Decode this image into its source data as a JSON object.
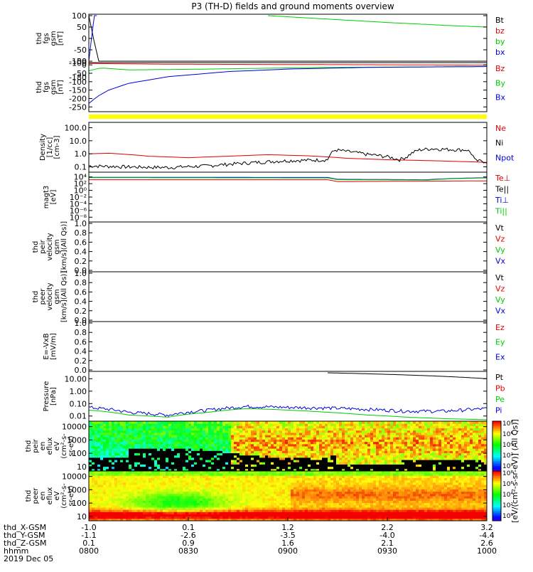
{
  "title": "P3 (TH-D) fields and ground moments overview",
  "colors": {
    "red": "#e00000",
    "green": "#00cc00",
    "blue": "#0000dd",
    "black": "#000000",
    "yellow": "#ffff00"
  },
  "chart_data": [
    {
      "type": "line",
      "panel": "fgs",
      "ylabel": [
        "thd",
        "fgs",
        "gsm",
        "[nT]"
      ],
      "ylim": [
        -100,
        100
      ],
      "yticks": [
        "100",
        "50",
        "0",
        "-50",
        "-100"
      ],
      "legend": [
        {
          "label": "Bt",
          "color": "black"
        },
        {
          "label": "bz",
          "color": "red"
        },
        {
          "label": "by",
          "color": "green"
        },
        {
          "label": "bx",
          "color": "blue"
        }
      ],
      "series": [
        {
          "name": "Bt",
          "color": "black",
          "x": [
            0.0,
            0.01,
            0.016,
            0.03,
            1.0
          ],
          "y": [
            100,
            60,
            -100,
            -100,
            -100
          ]
        },
        {
          "name": "bx",
          "color": "blue",
          "x": [
            0.0,
            0.008,
            0.014,
            0.02
          ],
          "y": [
            -100,
            20,
            100,
            100
          ]
        },
        {
          "name": "by",
          "color": "green",
          "x": [
            0.45,
            0.6,
            0.75,
            0.9,
            1.0
          ],
          "y": [
            100,
            85,
            70,
            57,
            50
          ]
        }
      ]
    },
    {
      "type": "line",
      "panel": "fgs_ds",
      "ylabel": [
        "thd",
        "fgs",
        "gsm",
        "[nT]"
      ],
      "ylim": [
        -270,
        5
      ],
      "yticks": [
        "0",
        "-50",
        "-100",
        "-150",
        "-200",
        "-250"
      ],
      "extra_yticks": [
        {
          "label": "-100",
          "value": 12
        },
        {
          "label": "-50",
          "value": 22
        },
        {
          "label": "-180",
          "value": -74
        }
      ],
      "legend": [
        {
          "label": "Bz",
          "color": "red"
        },
        {
          "label": "By",
          "color": "green"
        },
        {
          "label": "Bx",
          "color": "blue"
        }
      ],
      "series": [
        {
          "name": "Bz",
          "color": "red",
          "x": [
            0.0,
            0.2,
            0.5,
            0.8,
            1.0
          ],
          "y": [
            8,
            4,
            2,
            0,
            -2
          ]
        },
        {
          "name": "By",
          "color": "green",
          "x": [
            0.0,
            0.03,
            0.1,
            0.3,
            0.6,
            1.0
          ],
          "y": [
            -35,
            -18,
            -30,
            -25,
            -15,
            -10
          ]
        },
        {
          "name": "Bx",
          "color": "blue",
          "x": [
            0.0,
            0.02,
            0.05,
            0.1,
            0.2,
            0.35,
            0.5,
            0.7,
            1.0
          ],
          "y": [
            -230,
            -190,
            -150,
            -110,
            -70,
            -40,
            -25,
            -15,
            -10
          ]
        }
      ]
    },
    {
      "type": "bar",
      "panel": "flag",
      "color": "yellow"
    },
    {
      "type": "line",
      "panel": "density",
      "ylabel": [
        "Density",
        "[1/cc]",
        "[cm-3]"
      ],
      "scale": "log",
      "ylim": [
        0.05,
        200
      ],
      "yticks": [
        {
          "label": "100.0",
          "value": 100
        },
        {
          "label": "10.0",
          "value": 10
        },
        {
          "label": "1.0",
          "value": 1
        },
        {
          "label": "0.1",
          "value": 0.1
        }
      ],
      "legend": [
        {
          "label": "Ne",
          "color": "red"
        },
        {
          "label": "Ni",
          "color": "black"
        },
        {
          "label": "Npot",
          "color": "blue"
        }
      ],
      "series": [
        {
          "name": "Ne",
          "color": "red",
          "x": [
            0.0,
            0.05,
            0.15,
            0.25,
            0.35,
            0.45,
            0.55,
            0.65,
            0.75,
            0.85,
            1.0
          ],
          "y": [
            1.0,
            1.1,
            0.65,
            0.5,
            0.65,
            0.85,
            0.7,
            0.45,
            0.35,
            0.3,
            0.22
          ]
        },
        {
          "name": "Ni",
          "color": "black",
          "x": [
            0.0,
            0.1,
            0.2,
            0.3,
            0.4,
            0.5,
            0.6,
            0.62,
            0.65,
            0.7,
            0.75,
            0.78,
            0.8,
            0.83,
            0.86,
            0.9,
            0.95,
            0.97,
            1.0
          ],
          "y": [
            0.12,
            0.1,
            0.09,
            0.12,
            0.2,
            0.3,
            0.35,
            2.0,
            1.5,
            0.9,
            0.6,
            0.35,
            0.6,
            2.0,
            2.5,
            2.2,
            2.0,
            0.3,
            0.25
          ]
        }
      ]
    },
    {
      "type": "line",
      "panel": "moments_temp",
      "ylabel": [
        "magt3",
        "[eV]"
      ],
      "scale": "log",
      "ylim": [
        1e-09,
        100000.0
      ],
      "yticks": [
        {
          "label": "10⁴",
          "value": 10000.0
        },
        {
          "label": "10²",
          "value": 100.0
        },
        {
          "label": "10⁰",
          "value": 1
        },
        {
          "label": "10⁻²",
          "value": 0.01
        },
        {
          "label": "10⁻⁴",
          "value": 0.0001
        },
        {
          "label": "10⁻⁶",
          "value": 1e-06
        },
        {
          "label": "10⁻⁸",
          "value": 1e-08
        }
      ],
      "legend": [
        {
          "label": "Te⊥",
          "color": "red"
        },
        {
          "label": "Te||",
          "color": "black"
        },
        {
          "label": "Ti⊥",
          "color": "blue"
        },
        {
          "label": "Ti||",
          "color": "green"
        }
      ],
      "series": [
        {
          "name": "Te⊥",
          "color": "red",
          "x": [
            0.0,
            0.6,
            0.62,
            0.9,
            1.0
          ],
          "y": [
            1500,
            1500,
            400,
            600,
            700
          ]
        },
        {
          "name": "Ti⊥",
          "color": "blue",
          "x": [
            0.0,
            0.6,
            0.62,
            0.85,
            1.0
          ],
          "y": [
            8000,
            7000,
            2000,
            1500,
            6000
          ]
        },
        {
          "name": "Ti||",
          "color": "green",
          "x": [
            0.0,
            0.6,
            0.62,
            0.85,
            1.0
          ],
          "y": [
            6000,
            5000,
            1500,
            1200,
            5000
          ]
        }
      ]
    },
    {
      "type": "line",
      "panel": "peir_velocity",
      "ylabel": [
        "thd",
        "peir",
        "velocity",
        "gsm",
        "[km/s](All Qs)]"
      ],
      "ylim": [
        0,
        1
      ],
      "yticks": [
        "1.0",
        "0.8",
        "0.6",
        "0.4",
        "0.2",
        "0.0"
      ],
      "legend": [
        {
          "label": "Vt",
          "color": "black"
        },
        {
          "label": "Vz",
          "color": "red"
        },
        {
          "label": "Vy",
          "color": "green"
        },
        {
          "label": "Vx",
          "color": "blue"
        }
      ]
    },
    {
      "type": "line",
      "panel": "peer_velocity",
      "ylabel": [
        "thd",
        "peer",
        "velocity",
        "gsm",
        "[km/s](All Qs)]"
      ],
      "ylim": [
        0,
        1
      ],
      "yticks": [
        "1.0",
        "0.8",
        "0.6",
        "0.4",
        "0.2",
        "0.0"
      ],
      "legend": [
        {
          "label": "Vt",
          "color": "black"
        },
        {
          "label": "Vz",
          "color": "red"
        },
        {
          "label": "Vy",
          "color": "green"
        },
        {
          "label": "Vx",
          "color": "blue"
        }
      ]
    },
    {
      "type": "line",
      "panel": "efield",
      "ylabel": [
        "E=-VxB",
        "[mV/m]"
      ],
      "ylim": [
        0,
        1
      ],
      "yticks": [
        "1.0",
        "0.8",
        "0.6",
        "0.4",
        "0.2",
        "0.0"
      ],
      "legend": [
        {
          "label": "Ez",
          "color": "red"
        },
        {
          "label": "Ey",
          "color": "green"
        },
        {
          "label": "Ex",
          "color": "blue"
        }
      ]
    },
    {
      "type": "line",
      "panel": "pressure",
      "ylabel": [
        "Pressure",
        "[nPa]"
      ],
      "scale": "log",
      "ylim": [
        0.005,
        30
      ],
      "yticks": [
        {
          "label": "10.00",
          "value": 10
        },
        {
          "label": "1.00",
          "value": 1
        },
        {
          "label": "0.10",
          "value": 0.1
        },
        {
          "label": "0.01",
          "value": 0.01
        }
      ],
      "legend": [
        {
          "label": "Pt",
          "color": "black"
        },
        {
          "label": "Pb",
          "color": "red"
        },
        {
          "label": "Pe",
          "color": "green"
        },
        {
          "label": "Pi",
          "color": "blue"
        }
      ],
      "series": [
        {
          "name": "Pt",
          "color": "black",
          "x": [
            0.6,
            1.0
          ],
          "y": [
            30,
            10
          ]
        },
        {
          "name": "Pi",
          "color": "blue",
          "x": [
            0.0,
            0.1,
            0.2,
            0.3,
            0.4,
            0.5,
            0.6,
            0.7,
            0.8,
            0.9,
            1.0
          ],
          "y": [
            0.05,
            0.02,
            0.012,
            0.03,
            0.06,
            0.05,
            0.045,
            0.035,
            0.025,
            0.025,
            0.04
          ]
        },
        {
          "name": "Pe",
          "color": "green",
          "x": [
            0.0,
            0.1,
            0.2,
            0.3,
            0.4,
            0.5,
            0.6,
            0.7,
            0.8,
            0.9,
            1.0
          ],
          "y": [
            0.03,
            0.012,
            0.008,
            0.02,
            0.04,
            0.03,
            0.02,
            0.012,
            0.008,
            0.006,
            0.005
          ]
        }
      ]
    },
    {
      "type": "heatmap",
      "panel": "peir_eflux",
      "ylabel": [
        "thd",
        "peir",
        "en",
        "eflux",
        "eV",
        "(cm²-s-",
        "sr-eV)"
      ],
      "scale": "log",
      "ylim": [
        6,
        20000
      ],
      "yticks": [
        {
          "label": "10000",
          "value": 10000
        },
        {
          "label": "1000",
          "value": 1000
        },
        {
          "label": "100",
          "value": 100
        },
        {
          "label": "10",
          "value": 10
        }
      ],
      "colorbar": {
        "min_exp": 0,
        "max_exp": 8,
        "labels": [
          "10⁸",
          "10⁶",
          "10⁴",
          "10²",
          "10⁰"
        ]
      }
    },
    {
      "type": "heatmap",
      "panel": "peer_eflux",
      "ylabel": [
        "thd",
        "peer",
        "en",
        "eflux",
        "eV",
        "(cm²-s-",
        "sr-eV)"
      ],
      "scale": "log",
      "ylim": [
        6,
        20000
      ],
      "yticks": [
        {
          "label": "10000",
          "value": 10000
        },
        {
          "label": "1000",
          "value": 1000
        },
        {
          "label": "100",
          "value": 100
        },
        {
          "label": "10",
          "value": 10
        }
      ],
      "colorbar": {
        "min_exp": 0,
        "max_exp": 8,
        "labels": [
          "10⁸",
          "10⁶",
          "10⁴",
          "10²",
          "10⁰"
        ]
      }
    }
  ],
  "colorbar_unit": "[eV/(cm²-s-sr-eV)] (All Qs)]",
  "xaxis": {
    "row_labels": [
      "thd_X-GSM",
      "thd_Y-GSM",
      "thd_Z-GSM",
      "hhmm",
      "2019 Dec 05"
    ],
    "ticks": [
      {
        "x": 0.0,
        "values": [
          "-1.0",
          "-1.1",
          "0.1",
          "0800"
        ]
      },
      {
        "x": 0.25,
        "values": [
          "0.1",
          "-2.6",
          "0.9",
          "0830"
        ]
      },
      {
        "x": 0.5,
        "values": [
          "1.2",
          "-3.5",
          "1.6",
          "0900"
        ]
      },
      {
        "x": 0.75,
        "values": [
          "2.2",
          "-4.0",
          "2.1",
          "0930"
        ]
      },
      {
        "x": 1.0,
        "values": [
          "3.2",
          "-4.4",
          "2.6",
          "1000"
        ]
      }
    ]
  }
}
